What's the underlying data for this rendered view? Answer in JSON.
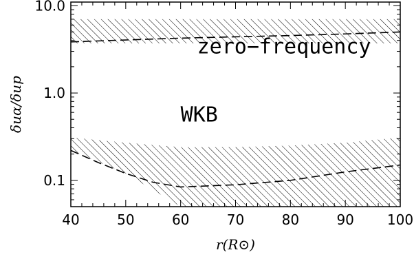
{
  "chart_data": {
    "type": "line",
    "xlabel": "r(R⊙)",
    "ylabel": "δuα/δup",
    "xlim": [
      40,
      100
    ],
    "ylim": [
      0.05,
      11
    ],
    "yscale": "log",
    "x_ticks": [
      40,
      50,
      60,
      70,
      80,
      90,
      100
    ],
    "x_tick_labels": [
      "40",
      "50",
      "60",
      "70",
      "80",
      "90",
      "100"
    ],
    "y_ticks": [
      0.1,
      1.0,
      10.0
    ],
    "y_tick_labels": [
      "0.1",
      "1.0",
      "10.0"
    ],
    "grid": false,
    "series": [
      {
        "line_style": "dashed",
        "x": [
          40,
          50,
          60,
          70,
          80,
          90,
          100
        ],
        "y": [
          3.85,
          4.05,
          4.25,
          4.4,
          4.55,
          4.75,
          5.0
        ]
      },
      {
        "line_style": "dashed",
        "x": [
          40,
          45,
          50,
          55,
          60,
          70,
          80,
          90,
          100
        ],
        "y": [
          0.22,
          0.16,
          0.12,
          0.095,
          0.084,
          0.089,
          0.1,
          0.125,
          0.15
        ]
      }
    ],
    "shaded_bands": [
      {
        "pattern": "diagonal-hatch",
        "x": [
          40,
          100
        ],
        "y_lower": [
          3.7,
          3.7
        ],
        "y_upper": [
          7.0,
          7.0
        ]
      },
      {
        "pattern": "diagonal-hatch",
        "x": [
          40,
          50,
          60,
          70,
          80,
          90,
          100
        ],
        "y_upper": [
          0.31,
          0.27,
          0.24,
          0.24,
          0.25,
          0.27,
          0.31
        ],
        "y_lower": [
          0.22,
          0.12,
          0.05,
          0.05,
          0.05,
          0.05,
          0.05
        ]
      }
    ],
    "annotations": [
      {
        "text": "zero−frequency",
        "x": 63,
        "y": 2.85
      },
      {
        "text": "WKB",
        "x": 60,
        "y": 0.47
      }
    ]
  }
}
